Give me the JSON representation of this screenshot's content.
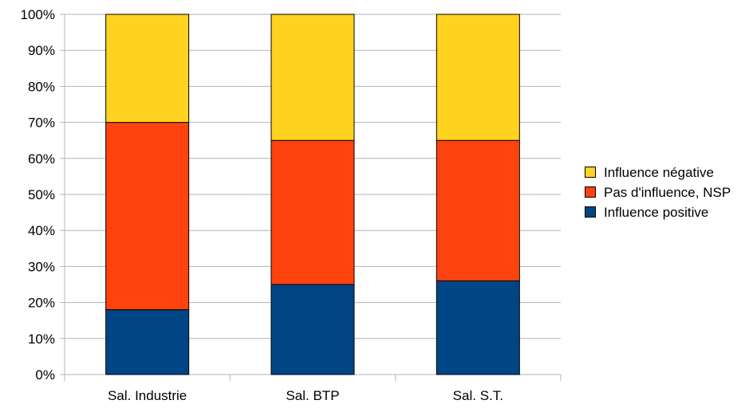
{
  "chart_data": {
    "type": "bar",
    "stacked": true,
    "normalized": true,
    "categories": [
      "Sal. Industrie",
      "Sal. BTP",
      "Sal. S.T."
    ],
    "series": [
      {
        "name": "Influence positive",
        "color": "#004586",
        "values": [
          18,
          25,
          26
        ]
      },
      {
        "name": "Pas d'influence, NSP",
        "color": "#FF420E",
        "values": [
          52,
          40,
          39
        ]
      },
      {
        "name": "Influence négative",
        "color": "#FFD320",
        "values": [
          30,
          35,
          35
        ]
      }
    ],
    "yticks": [
      "0%",
      "10%",
      "20%",
      "30%",
      "40%",
      "50%",
      "60%",
      "70%",
      "80%",
      "90%",
      "100%"
    ],
    "ylim": [
      0,
      100
    ],
    "grid": true,
    "legend_position": "right",
    "legend_order": [
      "Influence négative",
      "Pas d'influence, NSP",
      "Influence positive"
    ],
    "title": "",
    "xlabel": "",
    "ylabel": ""
  }
}
